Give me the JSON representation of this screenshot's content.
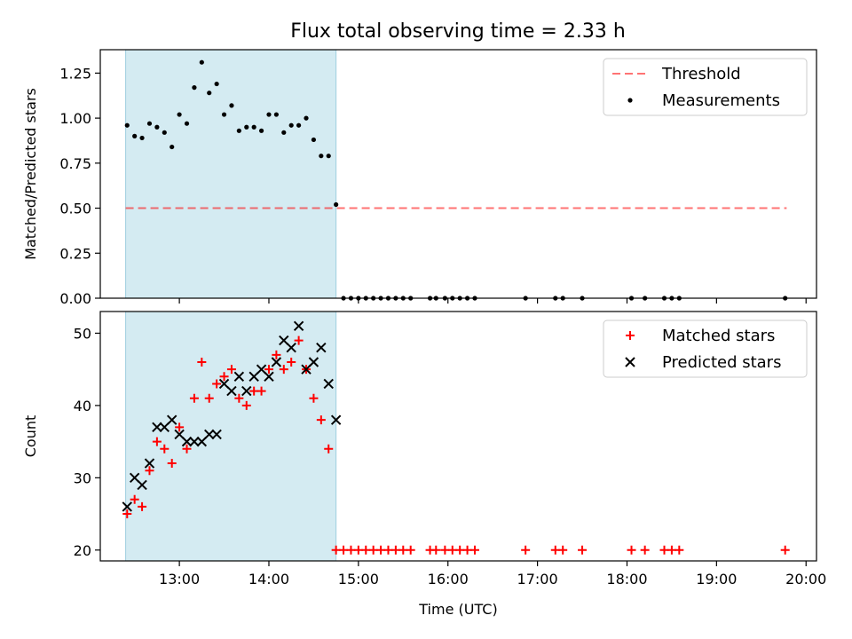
{
  "title": "Flux total observing time = 2.33 h",
  "colors": {
    "shade": "#add8e6",
    "threshold": "#ff0000",
    "measurement": "#000000",
    "matched": "#ff0000",
    "predicted": "#000000"
  },
  "chart_data": [
    {
      "type": "scatter",
      "panel": "top",
      "xlabel": "",
      "ylabel": "Matched/Predicted stars",
      "xlim": [
        "12:07",
        "20:07"
      ],
      "ylim": [
        0,
        1.38
      ],
      "yticks": [
        "0.00",
        "0.25",
        "0.50",
        "0.75",
        "1.00",
        "1.25"
      ],
      "shaded_region": [
        "12:24",
        "14:45"
      ],
      "threshold": {
        "name": "Threshold",
        "value": 0.5,
        "x": [
          "12:24",
          "19:47"
        ],
        "style": "dashed"
      },
      "legend": {
        "position": "top-right",
        "entries": [
          "Threshold",
          "Measurements"
        ]
      },
      "series": [
        {
          "name": "Measurements",
          "points": [
            [
              "12:25",
              0.96
            ],
            [
              "12:30",
              0.9
            ],
            [
              "12:35",
              0.89
            ],
            [
              "12:40",
              0.97
            ],
            [
              "12:45",
              0.95
            ],
            [
              "12:50",
              0.92
            ],
            [
              "12:55",
              0.84
            ],
            [
              "13:00",
              1.02
            ],
            [
              "13:05",
              0.97
            ],
            [
              "13:10",
              1.17
            ],
            [
              "13:15",
              1.31
            ],
            [
              "13:20",
              1.14
            ],
            [
              "13:25",
              1.19
            ],
            [
              "13:30",
              1.02
            ],
            [
              "13:35",
              1.07
            ],
            [
              "13:40",
              0.93
            ],
            [
              "13:45",
              0.95
            ],
            [
              "13:50",
              0.95
            ],
            [
              "13:55",
              0.93
            ],
            [
              "14:00",
              1.02
            ],
            [
              "14:05",
              1.02
            ],
            [
              "14:10",
              0.92
            ],
            [
              "14:15",
              0.96
            ],
            [
              "14:20",
              0.96
            ],
            [
              "14:25",
              1.0
            ],
            [
              "14:30",
              0.88
            ],
            [
              "14:35",
              0.79
            ],
            [
              "14:40",
              0.79
            ],
            [
              "14:45",
              0.52
            ],
            [
              "14:50",
              0
            ],
            [
              "14:55",
              0
            ],
            [
              "15:00",
              0
            ],
            [
              "15:05",
              0
            ],
            [
              "15:10",
              0
            ],
            [
              "15:15",
              0
            ],
            [
              "15:20",
              0
            ],
            [
              "15:25",
              0
            ],
            [
              "15:30",
              0
            ],
            [
              "15:35",
              0
            ],
            [
              "15:48",
              0
            ],
            [
              "15:52",
              0
            ],
            [
              "15:58",
              0
            ],
            [
              "16:03",
              0
            ],
            [
              "16:08",
              0
            ],
            [
              "16:13",
              0
            ],
            [
              "16:18",
              0
            ],
            [
              "16:52",
              0
            ],
            [
              "17:12",
              0
            ],
            [
              "17:17",
              0
            ],
            [
              "17:30",
              0
            ],
            [
              "18:03",
              0
            ],
            [
              "18:12",
              0
            ],
            [
              "18:25",
              0
            ],
            [
              "18:30",
              0
            ],
            [
              "18:35",
              0
            ],
            [
              "19:46",
              0
            ]
          ]
        }
      ]
    },
    {
      "type": "scatter",
      "panel": "bottom",
      "xlabel": "Time (UTC)",
      "ylabel": "Count",
      "xlim": [
        "12:07",
        "20:07"
      ],
      "ylim": [
        18.5,
        53
      ],
      "xticks": [
        "13:00",
        "14:00",
        "15:00",
        "16:00",
        "17:00",
        "18:00",
        "19:00",
        "20:00"
      ],
      "yticks": [
        "20",
        "30",
        "40",
        "50"
      ],
      "shaded_region": [
        "12:24",
        "14:45"
      ],
      "legend": {
        "position": "top-right",
        "entries": [
          "Matched stars",
          "Predicted stars"
        ]
      },
      "series": [
        {
          "name": "Matched stars",
          "marker": "plus",
          "points": [
            [
              "12:25",
              25
            ],
            [
              "12:30",
              27
            ],
            [
              "12:35",
              26
            ],
            [
              "12:40",
              31
            ],
            [
              "12:45",
              35
            ],
            [
              "12:50",
              34
            ],
            [
              "12:55",
              32
            ],
            [
              "13:00",
              37
            ],
            [
              "13:05",
              34
            ],
            [
              "13:10",
              41
            ],
            [
              "13:15",
              46
            ],
            [
              "13:20",
              41
            ],
            [
              "13:25",
              43
            ],
            [
              "13:30",
              44
            ],
            [
              "13:35",
              45
            ],
            [
              "13:40",
              41
            ],
            [
              "13:45",
              40
            ],
            [
              "13:50",
              42
            ],
            [
              "13:55",
              42
            ],
            [
              "14:00",
              45
            ],
            [
              "14:05",
              47
            ],
            [
              "14:10",
              45
            ],
            [
              "14:15",
              46
            ],
            [
              "14:20",
              49
            ],
            [
              "14:25",
              45
            ],
            [
              "14:30",
              41
            ],
            [
              "14:35",
              38
            ],
            [
              "14:40",
              34
            ],
            [
              "14:45",
              20
            ],
            [
              "14:50",
              20
            ],
            [
              "14:55",
              20
            ],
            [
              "15:00",
              20
            ],
            [
              "15:05",
              20
            ],
            [
              "15:10",
              20
            ],
            [
              "15:15",
              20
            ],
            [
              "15:20",
              20
            ],
            [
              "15:25",
              20
            ],
            [
              "15:30",
              20
            ],
            [
              "15:35",
              20
            ],
            [
              "15:48",
              20
            ],
            [
              "15:52",
              20
            ],
            [
              "15:58",
              20
            ],
            [
              "16:03",
              20
            ],
            [
              "16:08",
              20
            ],
            [
              "16:13",
              20
            ],
            [
              "16:18",
              20
            ],
            [
              "16:52",
              20
            ],
            [
              "17:12",
              20
            ],
            [
              "17:17",
              20
            ],
            [
              "17:30",
              20
            ],
            [
              "18:03",
              20
            ],
            [
              "18:12",
              20
            ],
            [
              "18:25",
              20
            ],
            [
              "18:30",
              20
            ],
            [
              "18:35",
              20
            ],
            [
              "19:46",
              20
            ]
          ]
        },
        {
          "name": "Predicted stars",
          "marker": "x",
          "points": [
            [
              "12:25",
              26
            ],
            [
              "12:30",
              30
            ],
            [
              "12:35",
              29
            ],
            [
              "12:40",
              32
            ],
            [
              "12:45",
              37
            ],
            [
              "12:50",
              37
            ],
            [
              "12:55",
              38
            ],
            [
              "13:00",
              36
            ],
            [
              "13:05",
              35
            ],
            [
              "13:10",
              35
            ],
            [
              "13:15",
              35
            ],
            [
              "13:20",
              36
            ],
            [
              "13:25",
              36
            ],
            [
              "13:30",
              43
            ],
            [
              "13:35",
              42
            ],
            [
              "13:40",
              44
            ],
            [
              "13:45",
              42
            ],
            [
              "13:50",
              44
            ],
            [
              "13:55",
              45
            ],
            [
              "14:00",
              44
            ],
            [
              "14:05",
              46
            ],
            [
              "14:10",
              49
            ],
            [
              "14:15",
              48
            ],
            [
              "14:20",
              51
            ],
            [
              "14:25",
              45
            ],
            [
              "14:30",
              46
            ],
            [
              "14:35",
              48
            ],
            [
              "14:40",
              43
            ],
            [
              "14:45",
              38
            ]
          ]
        }
      ]
    }
  ]
}
